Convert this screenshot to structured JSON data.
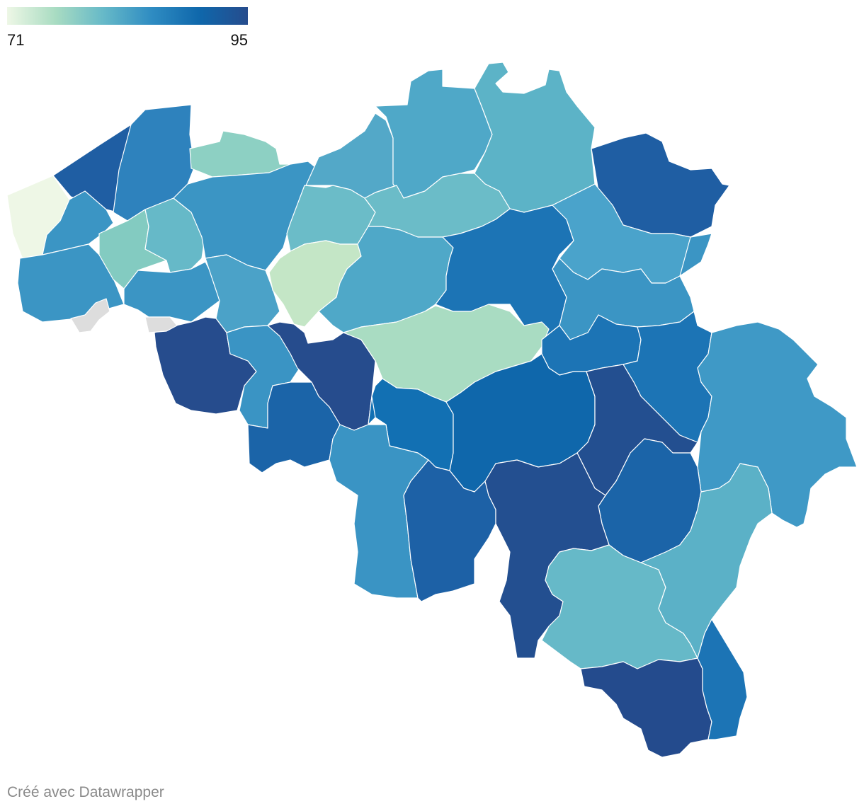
{
  "legend": {
    "min": "71",
    "max": "95",
    "colors": [
      "#eef7e6",
      "#a9dcc2",
      "#66b9c8",
      "#2f8cc2",
      "#0f67ab",
      "#264c8d"
    ]
  },
  "footer": {
    "credit": "Créé avec Datawrapper"
  },
  "map": {
    "no_data_color": "#dddddd",
    "regions": [
      {
        "id": "west-coast",
        "fill": "#eef7e6"
      },
      {
        "id": "coast-north",
        "fill": "#1f5ea3"
      },
      {
        "id": "west-central",
        "fill": "#2e82bd"
      },
      {
        "id": "north-central-coast",
        "fill": "#8dd0c3"
      },
      {
        "id": "far-west-south",
        "fill": "#3b95c4"
      },
      {
        "id": "west-south-1",
        "fill": "#3b95c4"
      },
      {
        "id": "west-green",
        "fill": "#83cbc1"
      },
      {
        "id": "west-teal",
        "fill": "#66b9c8"
      },
      {
        "id": "central-flanders",
        "fill": "#3b95c4"
      },
      {
        "id": "west-lower",
        "fill": "#3b95c4"
      },
      {
        "id": "south-west-1",
        "fill": "#4ba2c8"
      },
      {
        "id": "north-1",
        "fill": "#53a8c8"
      },
      {
        "id": "north-2",
        "fill": "#4fa8c8"
      },
      {
        "id": "north-3",
        "fill": "#5cb3c7"
      },
      {
        "id": "north-east",
        "fill": "#1f5ea3"
      },
      {
        "id": "central-north-1",
        "fill": "#6bbcc8"
      },
      {
        "id": "central-north-2",
        "fill": "#6bbcc8"
      },
      {
        "id": "central-north-3",
        "fill": "#74c2c6"
      },
      {
        "id": "brabant-light",
        "fill": "#c4e6c6"
      },
      {
        "id": "east-flanders-1",
        "fill": "#4fa8c8"
      },
      {
        "id": "central-blue",
        "fill": "#1c74b5"
      },
      {
        "id": "limburg-south",
        "fill": "#4aa3cb"
      },
      {
        "id": "limburg-1",
        "fill": "#3b95c4"
      },
      {
        "id": "limburg-2",
        "fill": "#3b95c4"
      },
      {
        "id": "hainaut-west",
        "fill": "#264c8d"
      },
      {
        "id": "hainaut-2",
        "fill": "#3a94c4"
      },
      {
        "id": "hainaut-3",
        "fill": "#264c8d"
      },
      {
        "id": "brabant-wallon",
        "fill": "#a9dcc2"
      },
      {
        "id": "namur-north",
        "fill": "#1270b3"
      },
      {
        "id": "liege-1",
        "fill": "#1c74b5"
      },
      {
        "id": "liege-2",
        "fill": "#1c74b5"
      },
      {
        "id": "liege-east",
        "fill": "#3f99c6"
      },
      {
        "id": "hainaut-south-1",
        "fill": "#1b64a8"
      },
      {
        "id": "charleroi",
        "fill": "#1270b3"
      },
      {
        "id": "namur-center",
        "fill": "#0f67ab"
      },
      {
        "id": "namur-east",
        "fill": "#234f90"
      },
      {
        "id": "ourthe",
        "fill": "#1b64a8"
      },
      {
        "id": "thuin",
        "fill": "#3a94c4"
      },
      {
        "id": "philippeville",
        "fill": "#1d61a6"
      },
      {
        "id": "dinant",
        "fill": "#234f90"
      },
      {
        "id": "givet",
        "fill": "#234f90"
      },
      {
        "id": "ardennes-center",
        "fill": "#66b9c8"
      },
      {
        "id": "bastogne",
        "fill": "#5bb1c7"
      },
      {
        "id": "virton",
        "fill": "#244b8d"
      },
      {
        "id": "arlon",
        "fill": "#1c74b5"
      },
      {
        "id": "no-data-1",
        "fill": "#dddddd"
      },
      {
        "id": "no-data-2",
        "fill": "#dddddd"
      }
    ]
  }
}
